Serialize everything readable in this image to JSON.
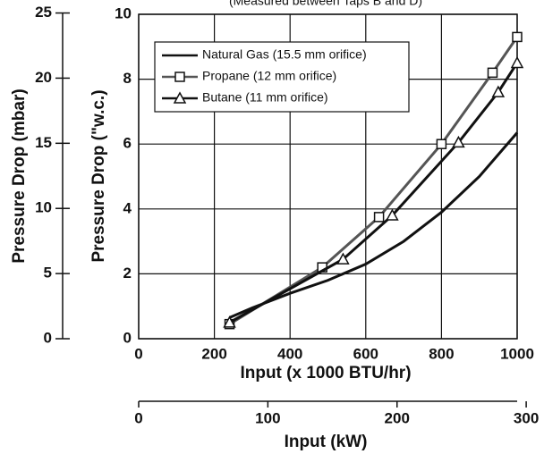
{
  "chart_data": {
    "type": "line",
    "title": "(Measured between Taps B and D)",
    "xlabel": "Input (x 1000 BTU/hr)",
    "ylabel": "Pressure Drop (\"w.c.)",
    "xlim": [
      0,
      1000
    ],
    "xticks": [
      0,
      200,
      400,
      600,
      800,
      1000
    ],
    "ylim": [
      0,
      10
    ],
    "yticks": [
      0,
      2,
      4,
      6,
      8,
      10
    ],
    "y2label": "Pressure Drop (mbar)",
    "y2lim": [
      0,
      25
    ],
    "y2ticks": [
      0,
      5,
      10,
      15,
      20,
      25
    ],
    "x2label": "Input (kW)",
    "x2lim": [
      0,
      293
    ],
    "x2ticks": [
      0,
      100,
      200,
      300
    ],
    "grid": true,
    "series": [
      {
        "name": "Natural Gas (15.5 mm orifice)",
        "color": "#111111",
        "marker": null,
        "x": [
          240,
          300,
          400,
          500,
          600,
          700,
          800,
          900,
          1000
        ],
        "values": [
          0.65,
          0.95,
          1.4,
          1.8,
          2.3,
          3.0,
          3.9,
          5.0,
          6.35
        ]
      },
      {
        "name": "Propane (12 mm orifice)",
        "color": "#555555",
        "marker": "square",
        "x": [
          240,
          485,
          635,
          800,
          935,
          1000
        ],
        "values": [
          0.45,
          2.2,
          3.75,
          6.0,
          8.2,
          9.3
        ]
      },
      {
        "name": "Butane (11 mm orifice)",
        "color": "#111111",
        "marker": "triangle",
        "x": [
          240,
          540,
          670,
          845,
          950,
          1000
        ],
        "values": [
          0.5,
          2.45,
          3.8,
          6.05,
          7.6,
          8.5
        ]
      }
    ]
  }
}
